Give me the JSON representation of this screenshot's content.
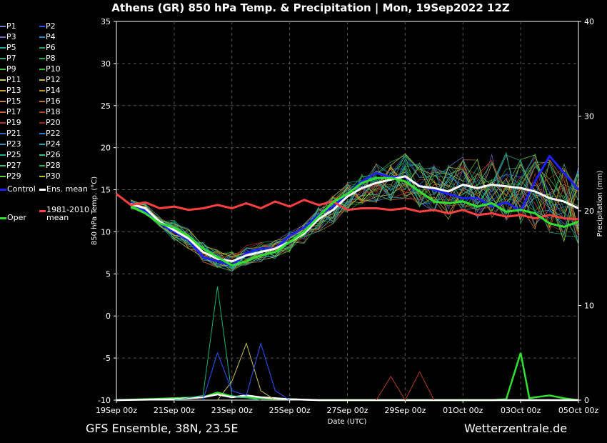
{
  "title": "Athens  (GR)  850 hPa Temp. & Precipitation | Mon, 19Sep2022 12Z",
  "footer": {
    "model": "GFS Ensemble, 38N, 23.5E",
    "site": "Wetterzentrale.de"
  },
  "legend": [
    {
      "label": "P1",
      "color": "#6a7fd4"
    },
    {
      "label": "P2",
      "color": "#2f52ff"
    },
    {
      "label": "P3",
      "color": "#6a6fc0"
    },
    {
      "label": "P4",
      "color": "#2a8fd0"
    },
    {
      "label": "P5",
      "color": "#1aa7a0"
    },
    {
      "label": "P6",
      "color": "#1fa070"
    },
    {
      "label": "P7",
      "color": "#1ab080"
    },
    {
      "label": "P8",
      "color": "#18b050"
    },
    {
      "label": "P9",
      "color": "#40c040"
    },
    {
      "label": "P10",
      "color": "#30c030"
    },
    {
      "label": "P11",
      "color": "#c8c850"
    },
    {
      "label": "P12",
      "color": "#d0b040"
    },
    {
      "label": "P13",
      "color": "#c8a030"
    },
    {
      "label": "P14",
      "color": "#c89020"
    },
    {
      "label": "P15",
      "color": "#c88040"
    },
    {
      "label": "P16",
      "color": "#c07030"
    },
    {
      "label": "P17",
      "color": "#c06030"
    },
    {
      "label": "P18",
      "color": "#b04020"
    },
    {
      "label": "P19",
      "color": "#b03030"
    },
    {
      "label": "P20",
      "color": "#a02020"
    },
    {
      "label": "P21",
      "color": "#3060c0"
    },
    {
      "label": "P22",
      "color": "#2080d0"
    },
    {
      "label": "P23",
      "color": "#3090c0"
    },
    {
      "label": "P24",
      "color": "#20a0b0"
    },
    {
      "label": "P25",
      "color": "#20b090"
    },
    {
      "label": "P26",
      "color": "#30c090"
    },
    {
      "label": "P27",
      "color": "#40c070"
    },
    {
      "label": "P28",
      "color": "#30b040"
    },
    {
      "label": "P29",
      "color": "#60d040"
    },
    {
      "label": "P30",
      "color": "#c0c020"
    },
    {
      "label": "Control",
      "color": "#2020ff"
    },
    {
      "label": "Ens. mean",
      "color": "#ffffff"
    },
    {
      "label": "1981-2010 mean",
      "label_line1": "1981-2010",
      "label_line2": "mean",
      "color": "#ff4040"
    },
    {
      "label": "Oper",
      "color": "#30e030"
    }
  ],
  "chart_data": {
    "type": "line",
    "title": "Athens  (GR)  850 hPa Temp. & Precipitation | Mon, 19Sep2022 12Z",
    "xlabel": "Date (UTC)",
    "ylabel": "850 hPa Temp. (°C)",
    "y2label": "Precipitation (mm)",
    "ylim": [
      -10,
      35
    ],
    "y2lim": [
      0,
      40
    ],
    "yticks": [
      -10,
      -5,
      0,
      5,
      10,
      15,
      20,
      25,
      30,
      35
    ],
    "y2ticks": [
      0,
      10,
      20,
      30,
      40
    ],
    "xlim": [
      0,
      16
    ],
    "xticks": [
      {
        "x": 0,
        "label": "19Sep 00z"
      },
      {
        "x": 2,
        "label": "21Sep 00z"
      },
      {
        "x": 4,
        "label": "23Sep 00z"
      },
      {
        "x": 6,
        "label": "25Sep 00z"
      },
      {
        "x": 8,
        "label": "27Sep 00z"
      },
      {
        "x": 10,
        "label": "29Sep 00z"
      },
      {
        "x": 12,
        "label": "01Oct 00z"
      },
      {
        "x": 14,
        "label": "03Oct 00z"
      },
      {
        "x": 16,
        "label": "05Oct 00z"
      }
    ],
    "x_unit": "days since 19Sep 00z",
    "grid": true,
    "legend_position": "left",
    "series": [
      {
        "name": "Control",
        "color": "#2020ff",
        "width": 3,
        "points": [
          [
            0.5,
            13.5
          ],
          [
            1,
            12.5
          ],
          [
            1.5,
            11
          ],
          [
            2,
            10
          ],
          [
            2.5,
            9
          ],
          [
            3,
            7
          ],
          [
            3.5,
            6.5
          ],
          [
            4,
            6
          ],
          [
            4.5,
            7.5
          ],
          [
            5,
            8
          ],
          [
            5.5,
            8
          ],
          [
            6,
            9.5
          ],
          [
            6.5,
            10.5
          ],
          [
            7,
            12
          ],
          [
            7.5,
            13
          ],
          [
            8,
            14.5
          ],
          [
            8.5,
            16
          ],
          [
            9,
            17
          ],
          [
            9.5,
            16.5
          ],
          [
            10,
            16.5
          ],
          [
            10.5,
            15.5
          ],
          [
            11,
            15
          ],
          [
            11.5,
            14.5
          ],
          [
            12,
            14
          ],
          [
            12.5,
            14
          ],
          [
            13,
            13
          ],
          [
            13.5,
            13.5
          ],
          [
            14,
            12.5
          ],
          [
            14.5,
            16
          ],
          [
            15,
            19
          ],
          [
            15.5,
            17
          ],
          [
            16,
            15
          ]
        ]
      },
      {
        "name": "Ens. mean",
        "color": "#ffffff",
        "width": 3,
        "points": [
          [
            0.5,
            13.3
          ],
          [
            1,
            12.8
          ],
          [
            1.5,
            11.2
          ],
          [
            2,
            10.2
          ],
          [
            2.5,
            9.2
          ],
          [
            3,
            7.6
          ],
          [
            3.5,
            6.8
          ],
          [
            4,
            6.5
          ],
          [
            4.5,
            7.2
          ],
          [
            5,
            7.6
          ],
          [
            5.5,
            8
          ],
          [
            6,
            8.8
          ],
          [
            6.5,
            9.8
          ],
          [
            7,
            11.5
          ],
          [
            7.5,
            12.6
          ],
          [
            8,
            14.2
          ],
          [
            8.5,
            15.2
          ],
          [
            9,
            15.8
          ],
          [
            9.5,
            16.2
          ],
          [
            10,
            16.6
          ],
          [
            10.5,
            15.4
          ],
          [
            11,
            15.2
          ],
          [
            11.5,
            14.8
          ],
          [
            12,
            15.6
          ],
          [
            12.5,
            15.2
          ],
          [
            13,
            15.6
          ],
          [
            13.5,
            15.4
          ],
          [
            14,
            15.2
          ],
          [
            14.5,
            14.8
          ],
          [
            15,
            14
          ],
          [
            15.5,
            13.6
          ],
          [
            16,
            12.8
          ]
        ]
      },
      {
        "name": "1981-2010 mean",
        "color": "#ff4040",
        "width": 3,
        "points": [
          [
            0,
            14.5
          ],
          [
            0.5,
            13.2
          ],
          [
            1,
            13.5
          ],
          [
            1.5,
            12.8
          ],
          [
            2,
            13
          ],
          [
            2.5,
            12.6
          ],
          [
            3,
            12.8
          ],
          [
            3.5,
            13.2
          ],
          [
            4,
            12.8
          ],
          [
            4.5,
            13.4
          ],
          [
            5,
            12.8
          ],
          [
            5.5,
            13.6
          ],
          [
            6,
            13
          ],
          [
            6.5,
            13.8
          ],
          [
            7,
            13.2
          ],
          [
            7.5,
            13.6
          ],
          [
            8,
            12.6
          ],
          [
            8.5,
            12.8
          ],
          [
            9,
            12.8
          ],
          [
            9.5,
            12.6
          ],
          [
            10,
            12.8
          ],
          [
            10.5,
            12.4
          ],
          [
            11,
            12.6
          ],
          [
            11.5,
            12.2
          ],
          [
            12,
            12.6
          ],
          [
            12.5,
            12
          ],
          [
            13,
            12.2
          ],
          [
            13.5,
            11.8
          ],
          [
            14,
            12
          ],
          [
            14.5,
            11.6
          ],
          [
            15,
            12
          ],
          [
            15.5,
            11.6
          ],
          [
            16,
            11.5
          ]
        ]
      },
      {
        "name": "Oper",
        "color": "#30e030",
        "width": 3,
        "points": [
          [
            0.5,
            13
          ],
          [
            1,
            12.2
          ],
          [
            1.5,
            11
          ],
          [
            2,
            10.5
          ],
          [
            2.5,
            9.5
          ],
          [
            3,
            8
          ],
          [
            3.5,
            7
          ],
          [
            4,
            6
          ],
          [
            4.5,
            6.5
          ],
          [
            5,
            7.2
          ],
          [
            5.5,
            7.6
          ],
          [
            6,
            8.8
          ],
          [
            6.5,
            10
          ],
          [
            7,
            11.8
          ],
          [
            7.5,
            13.5
          ],
          [
            8,
            14.5
          ],
          [
            8.5,
            15.8
          ],
          [
            9,
            16.4
          ],
          [
            9.5,
            16.4
          ],
          [
            10,
            16
          ],
          [
            10.5,
            14.8
          ],
          [
            11,
            13.6
          ],
          [
            11.5,
            13.4
          ],
          [
            12,
            13.6
          ],
          [
            12.5,
            13
          ],
          [
            13,
            13.4
          ],
          [
            13.5,
            12.4
          ],
          [
            14,
            12.6
          ],
          [
            14.5,
            12.2
          ],
          [
            15,
            11
          ],
          [
            15.5,
            10.6
          ],
          [
            16,
            11.2
          ]
        ]
      }
    ],
    "precipitation": [
      {
        "name": "Oper",
        "color": "#30e030",
        "points": [
          [
            0,
            0
          ],
          [
            3,
            0.3
          ],
          [
            3.5,
            0.8
          ],
          [
            4,
            0.4
          ],
          [
            5,
            0.2
          ],
          [
            6,
            0.1
          ],
          [
            7,
            0
          ],
          [
            13,
            0
          ],
          [
            13.5,
            0.1
          ],
          [
            14,
            5
          ],
          [
            14.3,
            0.2
          ],
          [
            14.5,
            0.3
          ],
          [
            15,
            0.5
          ],
          [
            15.5,
            0.2
          ],
          [
            16,
            0
          ]
        ]
      },
      {
        "name": "Ens. mean",
        "color": "#ffffff",
        "points": [
          [
            0,
            0
          ],
          [
            2,
            0.1
          ],
          [
            3,
            0.3
          ],
          [
            3.5,
            0.6
          ],
          [
            4,
            0.3
          ],
          [
            4.5,
            0.5
          ],
          [
            5,
            0.3
          ],
          [
            6,
            0.1
          ],
          [
            7,
            0
          ],
          [
            16,
            0
          ]
        ]
      },
      {
        "name": "P7",
        "color": "#1ab080",
        "points": [
          [
            2,
            0
          ],
          [
            3,
            0.5
          ],
          [
            3.5,
            12
          ],
          [
            4,
            0.5
          ],
          [
            5,
            0
          ]
        ]
      },
      {
        "name": "P11",
        "color": "#c8c850",
        "points": [
          [
            3.5,
            0
          ],
          [
            4,
            2
          ],
          [
            4.5,
            6
          ],
          [
            5,
            1
          ],
          [
            5.5,
            0
          ]
        ]
      },
      {
        "name": "P2",
        "color": "#2f52ff",
        "points": [
          [
            3,
            0
          ],
          [
            3.5,
            5
          ],
          [
            4,
            1
          ],
          [
            4.5,
            0.5
          ],
          [
            5,
            6
          ],
          [
            5.5,
            1
          ],
          [
            6,
            0
          ]
        ]
      },
      {
        "name": "P18",
        "color": "#b04020",
        "points": [
          [
            9,
            0
          ],
          [
            9.5,
            2.5
          ],
          [
            10,
            0
          ],
          [
            10.5,
            3
          ],
          [
            11,
            0
          ]
        ]
      }
    ]
  }
}
